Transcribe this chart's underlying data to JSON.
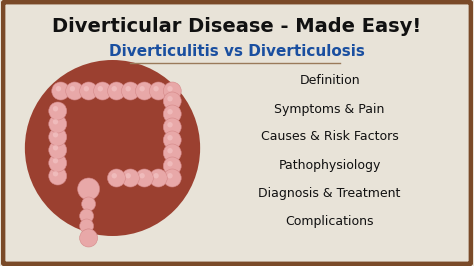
{
  "title": "Diverticular Disease - Made Easy!",
  "subtitle": "Diverticulitis vs Diverticulosis",
  "menu_items": [
    "Definition",
    "Symptoms & Pain",
    "Causes & Risk Factors",
    "Pathophysiology",
    "Diagnosis & Treatment",
    "Complications"
  ],
  "bg_color": "#e8e3d8",
  "border_color": "#7a4a28",
  "title_color": "#111111",
  "subtitle_color": "#1a4fa0",
  "menu_color": "#111111",
  "circle_fill": "#9b4030",
  "colon_fill": "#e8a8a8",
  "colon_shade": "#d48888",
  "divider_color": "#9a7a5a",
  "title_fontsize": 14,
  "subtitle_fontsize": 11,
  "menu_fontsize": 9.0
}
